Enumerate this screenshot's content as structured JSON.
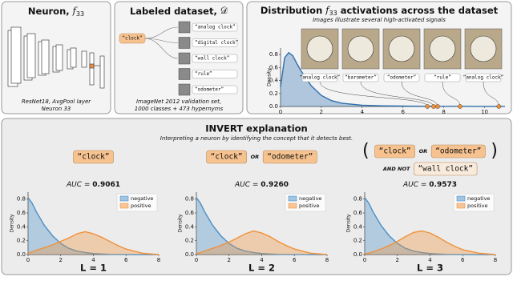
{
  "panels": {
    "neuron": {
      "title": "Neuron,",
      "symbol": "f",
      "subscript": "33",
      "caption": [
        "ResNet18, AvgPool layer",
        "Neuron 33"
      ]
    },
    "dataset": {
      "title": "Labeled dataset,",
      "symbol": "𝒟",
      "root": "“clock”",
      "children": [
        "“analog clock”",
        "“digital clock”",
        "“wall clock”",
        "“rule”",
        "“odometer”"
      ],
      "caption": [
        "ImageNet 2012 validation set,",
        "1000 classes + 473 hypernyms"
      ]
    },
    "distribution": {
      "title": [
        "Distribution",
        "f",
        "33",
        "activations across the dataset"
      ],
      "subtitle": "Images illustrate several high-activated signals",
      "images": [
        "“analog clock”",
        "“barometer”",
        "“odometer”",
        "“rule”",
        "“analog clock”"
      ]
    },
    "invert": {
      "title": "INVERT explanation",
      "subtitle": "Interpreting a neuron by identifying the concept that it detects best."
    }
  },
  "chart_data": [
    {
      "type": "area",
      "ylabel": "Density",
      "color": "#2f6fae",
      "x": [
        0,
        0.2,
        0.4,
        0.6,
        0.8,
        1,
        1.5,
        2,
        2.5,
        3,
        4,
        5,
        6,
        7,
        8,
        9,
        10,
        11
      ],
      "values": [
        0.3,
        0.75,
        0.83,
        0.78,
        0.66,
        0.55,
        0.32,
        0.17,
        0.09,
        0.05,
        0.02,
        0.01,
        0.006,
        0.004,
        0.003,
        0.002,
        0.001,
        0.001
      ],
      "activations": [
        7.2,
        7.5,
        7.7,
        8.8,
        10.7
      ],
      "point_color": "#f0913a",
      "xlim": [
        0,
        11
      ],
      "ylim": [
        0,
        0.9
      ],
      "xticks": [
        0,
        2,
        4,
        6,
        8,
        10
      ],
      "yticks": [
        {
          "value": 0,
          "label": "0.0"
        },
        {
          "value": 0.2,
          "label": "0.2"
        },
        {
          "value": 0.4,
          "label": "0.4"
        },
        {
          "value": 0.6,
          "label": "0.6"
        },
        {
          "value": 0.8,
          "label": "0.8"
        }
      ]
    },
    {
      "type": "area",
      "ylabel": "Density",
      "caption": "L = 1",
      "auc_name": "AUC",
      "auc_sign": "=",
      "auc": "0.9061",
      "formula": [
        [
          {
            "text": "“clock”",
            "kind": "concept"
          }
        ]
      ],
      "x": [
        0,
        0.25,
        0.5,
        1,
        1.5,
        2,
        2.5,
        3,
        3.5,
        4,
        4.5,
        5,
        5.5,
        6,
        7,
        8
      ],
      "series": [
        {
          "name": "negative",
          "color": "#4a90c8",
          "values": [
            0.82,
            0.74,
            0.62,
            0.42,
            0.27,
            0.16,
            0.09,
            0.05,
            0.03,
            0.015,
            0.008,
            0.004,
            0.002,
            0.001,
            0,
            0
          ]
        },
        {
          "name": "positive",
          "color": "#f0913a",
          "values": [
            0.02,
            0.04,
            0.06,
            0.1,
            0.14,
            0.19,
            0.24,
            0.3,
            0.33,
            0.3,
            0.25,
            0.19,
            0.13,
            0.08,
            0.02,
            0
          ]
        }
      ],
      "xlim": [
        0,
        8
      ],
      "ylim": [
        0,
        0.9
      ],
      "xticks": [
        0,
        2,
        4,
        6,
        8
      ],
      "yticks": [
        {
          "value": 0,
          "label": "0.0"
        },
        {
          "value": 0.2,
          "label": "0.2"
        },
        {
          "value": 0.4,
          "label": "0.4"
        },
        {
          "value": 0.6,
          "label": "0.6"
        },
        {
          "value": 0.8,
          "label": "0.8"
        }
      ],
      "legend": "upper right"
    },
    {
      "type": "area",
      "ylabel": "Density",
      "caption": "L = 2",
      "auc_name": "AUC",
      "auc_sign": "=",
      "auc": "0.9260",
      "formula": [
        [
          {
            "text": "“clock”",
            "kind": "concept"
          },
          {
            "text": "OR",
            "kind": "op"
          },
          {
            "text": "“odometer”",
            "kind": "concept"
          }
        ]
      ],
      "x": [
        0,
        0.25,
        0.5,
        1,
        1.5,
        2,
        2.5,
        3,
        3.5,
        4,
        4.5,
        5,
        5.5,
        6,
        7,
        8
      ],
      "series": [
        {
          "name": "negative",
          "color": "#4a90c8",
          "values": [
            0.82,
            0.74,
            0.62,
            0.42,
            0.27,
            0.16,
            0.09,
            0.05,
            0.03,
            0.015,
            0.008,
            0.004,
            0.002,
            0.001,
            0,
            0
          ]
        },
        {
          "name": "positive",
          "color": "#f0913a",
          "values": [
            0.01,
            0.03,
            0.05,
            0.09,
            0.13,
            0.18,
            0.24,
            0.3,
            0.34,
            0.31,
            0.26,
            0.19,
            0.13,
            0.08,
            0.02,
            0
          ]
        }
      ],
      "xlim": [
        0,
        8
      ],
      "ylim": [
        0,
        0.9
      ],
      "xticks": [
        0,
        2,
        4,
        6,
        8
      ],
      "yticks": [
        {
          "value": 0,
          "label": "0.0"
        },
        {
          "value": 0.2,
          "label": "0.2"
        },
        {
          "value": 0.4,
          "label": "0.4"
        },
        {
          "value": 0.6,
          "label": "0.6"
        },
        {
          "value": 0.8,
          "label": "0.8"
        }
      ],
      "legend": "upper right"
    },
    {
      "type": "area",
      "ylabel": "Density",
      "caption": "L = 3",
      "auc_name": "AUC",
      "auc_sign": "=",
      "auc": "0.9573",
      "formula": [
        [
          {
            "text": "(",
            "kind": "paren"
          },
          {
            "text": "“clock”",
            "kind": "concept"
          },
          {
            "text": "OR",
            "kind": "op"
          },
          {
            "text": "“odometer”",
            "kind": "concept"
          },
          {
            "text": ")",
            "kind": "paren"
          }
        ],
        [
          {
            "text": "AND NOT",
            "kind": "op"
          },
          {
            "text": "“wall clock”",
            "kind": "negated"
          }
        ]
      ],
      "x": [
        0,
        0.25,
        0.5,
        1,
        1.5,
        2,
        2.5,
        3,
        3.5,
        4,
        4.5,
        5,
        5.5,
        6,
        7,
        8
      ],
      "series": [
        {
          "name": "negative",
          "color": "#4a90c8",
          "values": [
            0.82,
            0.74,
            0.62,
            0.42,
            0.27,
            0.16,
            0.09,
            0.05,
            0.03,
            0.015,
            0.008,
            0.004,
            0.002,
            0.001,
            0,
            0
          ]
        },
        {
          "name": "positive",
          "color": "#f0913a",
          "values": [
            0.01,
            0.02,
            0.04,
            0.08,
            0.13,
            0.19,
            0.26,
            0.32,
            0.34,
            0.31,
            0.25,
            0.18,
            0.12,
            0.07,
            0.02,
            0
          ]
        }
      ],
      "xlim": [
        0,
        8
      ],
      "ylim": [
        0,
        0.9
      ],
      "xticks": [
        0,
        2,
        4,
        6,
        8
      ],
      "yticks": [
        {
          "value": 0,
          "label": "0.0"
        },
        {
          "value": 0.2,
          "label": "0.2"
        },
        {
          "value": 0.4,
          "label": "0.4"
        },
        {
          "value": 0.6,
          "label": "0.6"
        },
        {
          "value": 0.8,
          "label": "0.8"
        }
      ],
      "legend": "upper right"
    }
  ]
}
